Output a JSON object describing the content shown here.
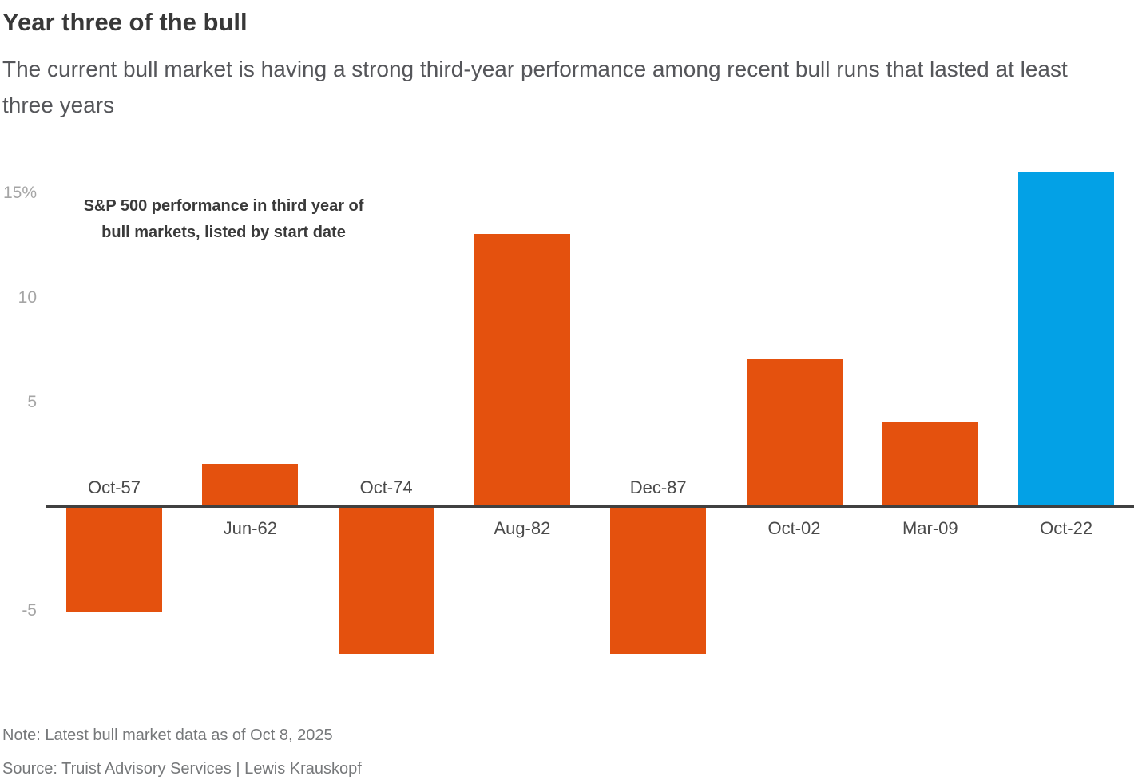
{
  "header": {
    "title": "Year three of the bull",
    "subtitle": "The current bull market is having a strong third-year performance among recent bull runs that lasted at least three years"
  },
  "chart_data": {
    "type": "bar",
    "title": "S&P 500 performance in third year of bull markets, listed by start date",
    "annotation_lines": {
      "line1": "S&P 500 performance in third year of",
      "line2": "bull markets, listed by start date"
    },
    "categories": [
      "Oct-57",
      "Jun-62",
      "Oct-74",
      "Aug-82",
      "Dec-87",
      "Oct-02",
      "Mar-09",
      "Oct-22"
    ],
    "values": [
      -5,
      2,
      -7,
      13,
      -7,
      7,
      4,
      16
    ],
    "unit": "%",
    "xlabel": "",
    "ylabel": "",
    "ylim": [
      -7.5,
      16.5
    ],
    "grid": false,
    "legend": false,
    "y_ticks": [
      {
        "label": "15%",
        "value": 15
      },
      {
        "label": "10",
        "value": 10
      },
      {
        "label": "5",
        "value": 5
      },
      {
        "label": "-5",
        "value": -5
      }
    ],
    "colors": {
      "default_bar": "#e4510e",
      "highlight_bar": "#03a1e6",
      "axis": "#404040"
    },
    "highlight_category": "Oct-22"
  },
  "footer": {
    "note": "Note: Latest bull market data as of Oct 8, 2025",
    "source": "Source: Truist Advisory Services | Lewis Krauskopf"
  }
}
